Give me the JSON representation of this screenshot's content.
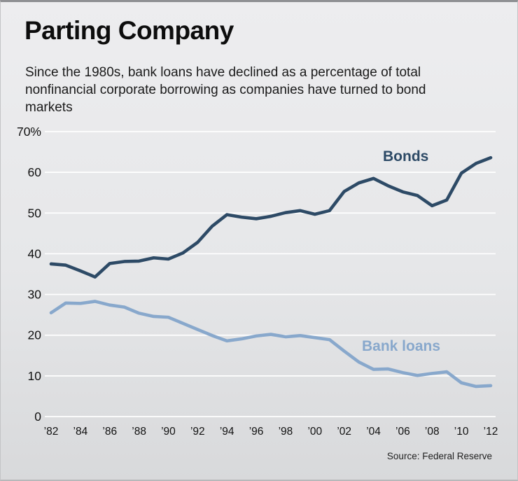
{
  "header": {
    "title": "Parting Company",
    "subtitle": "Since the 1980s, bank loans have declined as a percentage of total nonfinancial corporate borrowing as companies have turned to bond markets"
  },
  "footer": {
    "source": "Source: Federal Reserve"
  },
  "chart_data": {
    "type": "line",
    "title": "Parting Company",
    "xlabel": "",
    "ylabel": "Percentage of total nonfinancial corporate borrowing",
    "x_start": 1982,
    "x_end": 2012,
    "x_step": 1,
    "xtick_labels": [
      "’82",
      "’84",
      "’86",
      "’88",
      "’90",
      "’92",
      "’94",
      "’96",
      "’98",
      "’00",
      "’02",
      "’04",
      "’06",
      "’08",
      "’10",
      "’12"
    ],
    "ylim": [
      0,
      70
    ],
    "yticks": [
      0,
      10,
      20,
      30,
      40,
      50,
      60,
      70
    ],
    "ytick_labels": [
      "0",
      "10",
      "20",
      "30",
      "40",
      "50",
      "60",
      "70%"
    ],
    "grid": "horizontal white gridlines",
    "legend_position": "inline annotations on lines",
    "background_color": "#e6e7e9",
    "gridline_color": "#ffffff",
    "series": [
      {
        "name": "Bonds",
        "color": "#2d4a66",
        "values": [
          37.5,
          37.2,
          35.8,
          34.3,
          37.6,
          38.1,
          38.2,
          39.0,
          38.7,
          40.2,
          42.8,
          46.8,
          49.6,
          49.0,
          48.6,
          49.2,
          50.1,
          50.6,
          49.7,
          50.6,
          55.3,
          57.4,
          58.5,
          56.7,
          55.2,
          54.3,
          51.8,
          53.2,
          59.8,
          62.2,
          63.6
        ]
      },
      {
        "name": "Bank loans",
        "color": "#88a8cc",
        "values": [
          25.5,
          27.9,
          27.8,
          28.3,
          27.4,
          26.9,
          25.4,
          24.6,
          24.4,
          22.9,
          21.4,
          19.9,
          18.6,
          19.1,
          19.8,
          20.2,
          19.6,
          19.9,
          19.4,
          18.9,
          16.1,
          13.4,
          11.6,
          11.7,
          10.8,
          10.1,
          10.6,
          11.0,
          8.3,
          7.4,
          7.6
        ]
      }
    ]
  }
}
